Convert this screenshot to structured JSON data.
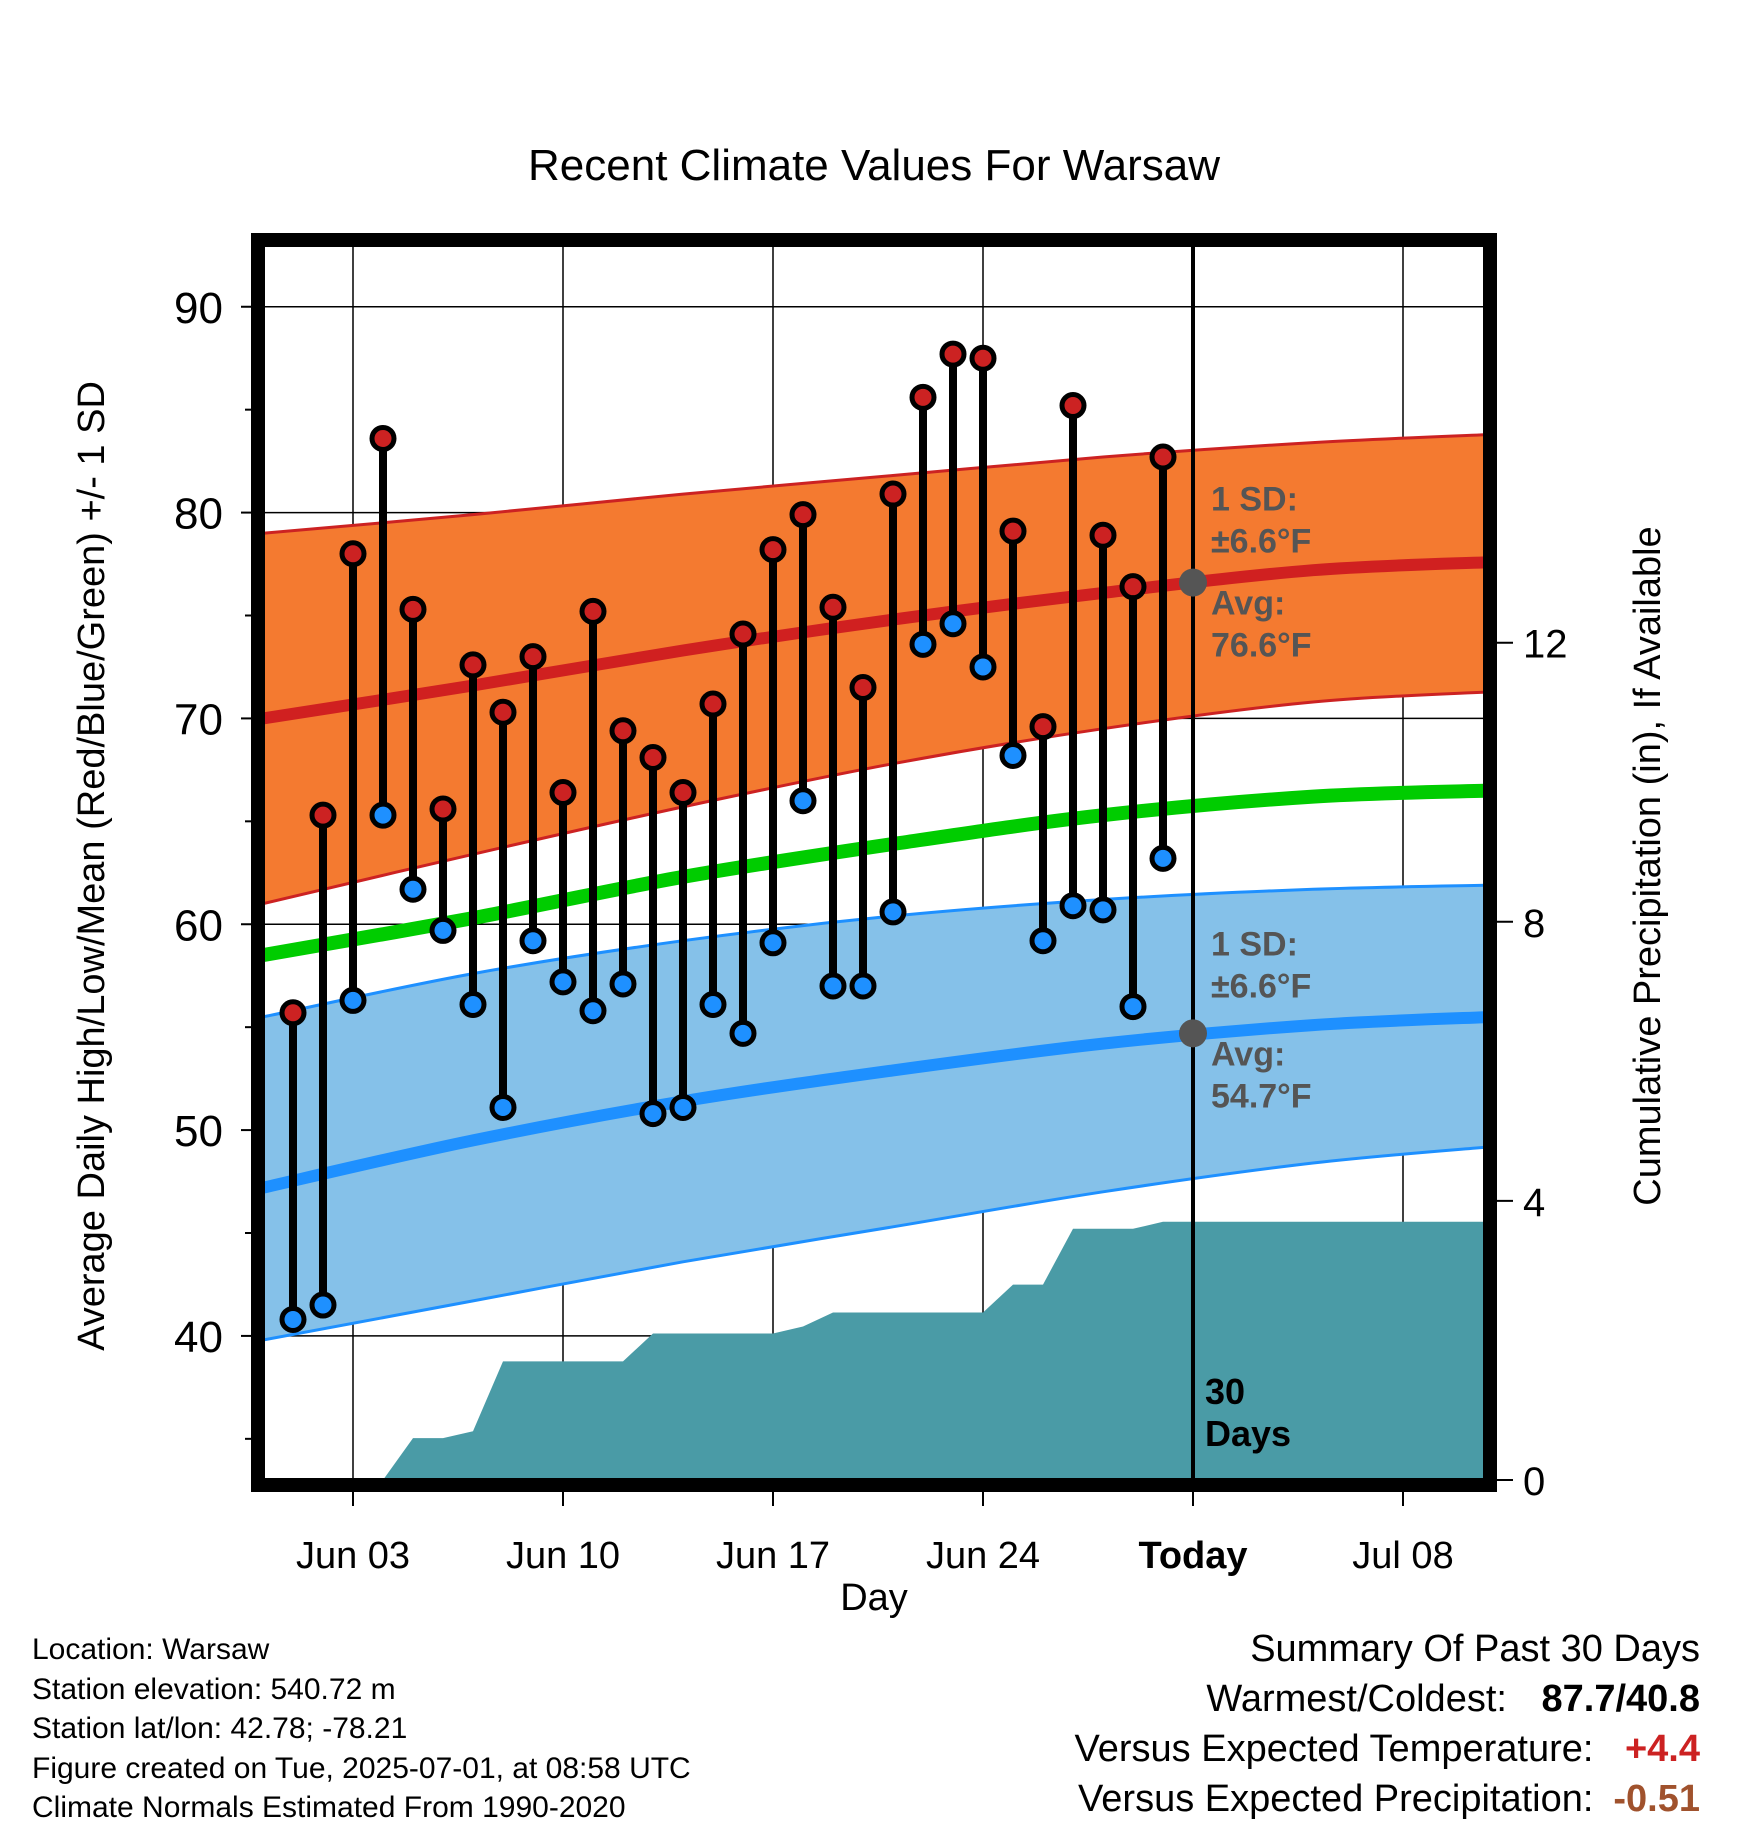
{
  "chart_data": {
    "type": "line",
    "title": "Recent Climate Values For Warsaw",
    "xlabel": "Day",
    "ylabel": "Average Daily High/Low/Mean (Red/Blue/Green) +/- 1 SD",
    "ylabel_right": "Cumulative Precipitation (in), If Available",
    "ylim": [
      33.0,
      93.0
    ],
    "y_ticks": [
      "40",
      "50",
      "60",
      "70",
      "80",
      "90"
    ],
    "ylim_right": [
      0,
      17.7
    ],
    "y_right_ticks": [
      "0",
      "4",
      "8",
      "12"
    ],
    "x_start_date": "2025-05-31",
    "x_end_date": "2025-07-11",
    "x_ticks": [
      {
        "date": "2025-06-03",
        "label": "Jun 03"
      },
      {
        "date": "2025-06-10",
        "label": "Jun 10"
      },
      {
        "date": "2025-06-17",
        "label": "Jun 17"
      },
      {
        "date": "2025-06-24",
        "label": "Jun 24"
      },
      {
        "date": "2025-07-01",
        "label": "Today"
      },
      {
        "date": "2025-07-08",
        "label": "Jul 08"
      }
    ],
    "today_date": "2025-07-01",
    "today_marker_label": "30\nDays",
    "grid": true,
    "series": [
      {
        "name": "Daily High",
        "color": "#cc2222",
        "marker": "dot",
        "x": [
          "2025-06-01",
          "2025-06-02",
          "2025-06-03",
          "2025-06-04",
          "2025-06-05",
          "2025-06-06",
          "2025-06-07",
          "2025-06-08",
          "2025-06-09",
          "2025-06-10",
          "2025-06-11",
          "2025-06-12",
          "2025-06-13",
          "2025-06-14",
          "2025-06-15",
          "2025-06-16",
          "2025-06-17",
          "2025-06-18",
          "2025-06-19",
          "2025-06-20",
          "2025-06-21",
          "2025-06-22",
          "2025-06-23",
          "2025-06-24",
          "2025-06-25",
          "2025-06-26",
          "2025-06-27",
          "2025-06-28",
          "2025-06-29",
          "2025-06-30"
        ],
        "values": [
          55.7,
          65.3,
          78.0,
          83.6,
          75.3,
          65.6,
          72.6,
          70.3,
          73.0,
          66.4,
          75.2,
          69.4,
          68.1,
          66.4,
          70.7,
          74.1,
          78.2,
          79.9,
          75.4,
          71.5,
          80.9,
          85.6,
          87.7,
          87.5,
          79.1,
          69.6,
          85.2,
          78.9,
          76.4,
          82.7
        ]
      },
      {
        "name": "Daily Low",
        "color": "#1e90ff",
        "marker": "dot",
        "x": [
          "2025-06-01",
          "2025-06-02",
          "2025-06-03",
          "2025-06-04",
          "2025-06-05",
          "2025-06-06",
          "2025-06-07",
          "2025-06-08",
          "2025-06-09",
          "2025-06-10",
          "2025-06-11",
          "2025-06-12",
          "2025-06-13",
          "2025-06-14",
          "2025-06-15",
          "2025-06-16",
          "2025-06-17",
          "2025-06-18",
          "2025-06-19",
          "2025-06-20",
          "2025-06-21",
          "2025-06-22",
          "2025-06-23",
          "2025-06-24",
          "2025-06-25",
          "2025-06-26",
          "2025-06-27",
          "2025-06-28",
          "2025-06-29",
          "2025-06-30"
        ],
        "values": [
          40.8,
          41.5,
          56.3,
          65.3,
          61.7,
          59.7,
          56.1,
          51.1,
          59.2,
          57.2,
          55.8,
          57.1,
          50.8,
          51.1,
          56.1,
          54.7,
          59.1,
          66.0,
          57.0,
          57.0,
          60.6,
          73.6,
          74.6,
          72.5,
          68.2,
          59.2,
          60.9,
          60.7,
          56.0,
          63.2
        ]
      },
      {
        "name": "Normal High",
        "color": "#d02020",
        "x": [
          "2025-05-31",
          "2025-06-07",
          "2025-06-14",
          "2025-06-21",
          "2025-06-28",
          "2025-07-05",
          "2025-07-11"
        ],
        "values": [
          70.0,
          71.6,
          73.3,
          74.8,
          76.1,
          77.2,
          77.6
        ]
      },
      {
        "name": "Normal High +1 SD",
        "color": "#cc2222",
        "x": [
          "2025-05-31",
          "2025-06-07",
          "2025-06-14",
          "2025-06-21",
          "2025-06-28",
          "2025-07-05",
          "2025-07-11"
        ],
        "values": [
          79.0,
          79.9,
          80.9,
          81.8,
          82.7,
          83.4,
          83.8
        ]
      },
      {
        "name": "Normal High -1 SD",
        "color": "#cc2222",
        "x": [
          "2025-05-31",
          "2025-06-07",
          "2025-06-14",
          "2025-06-21",
          "2025-06-28",
          "2025-07-05",
          "2025-07-11"
        ],
        "values": [
          61.0,
          63.4,
          65.7,
          67.8,
          69.5,
          70.8,
          71.3
        ]
      },
      {
        "name": "Normal Mean",
        "color": "#00cc00",
        "x": [
          "2025-05-31",
          "2025-06-07",
          "2025-06-14",
          "2025-06-21",
          "2025-06-28",
          "2025-07-05",
          "2025-07-11"
        ],
        "values": [
          58.5,
          60.3,
          62.3,
          63.9,
          65.3,
          66.2,
          66.5
        ]
      },
      {
        "name": "Normal Low",
        "color": "#1e90ff",
        "x": [
          "2025-05-31",
          "2025-06-07",
          "2025-06-14",
          "2025-06-21",
          "2025-06-28",
          "2025-07-05",
          "2025-07-11"
        ],
        "values": [
          47.2,
          49.5,
          51.4,
          52.9,
          54.2,
          55.1,
          55.5
        ]
      },
      {
        "name": "Normal Low +1 SD",
        "color": "#1e90ff",
        "x": [
          "2025-05-31",
          "2025-06-07",
          "2025-06-14",
          "2025-06-21",
          "2025-06-28",
          "2025-07-05",
          "2025-07-11"
        ],
        "values": [
          55.5,
          57.6,
          59.2,
          60.4,
          61.2,
          61.7,
          61.9
        ]
      },
      {
        "name": "Normal Low -1 SD",
        "color": "#1e90ff",
        "x": [
          "2025-05-31",
          "2025-06-07",
          "2025-06-14",
          "2025-06-21",
          "2025-06-28",
          "2025-07-05",
          "2025-07-11"
        ],
        "values": [
          39.8,
          41.7,
          43.6,
          45.3,
          47.0,
          48.4,
          49.2
        ]
      },
      {
        "name": "Cumulative Precipitation",
        "color": "#4a9ba6",
        "axis": "right",
        "x": [
          "2025-06-04",
          "2025-06-05",
          "2025-06-06",
          "2025-06-07",
          "2025-06-08",
          "2025-06-09",
          "2025-06-10",
          "2025-06-11",
          "2025-06-12",
          "2025-06-13",
          "2025-06-14",
          "2025-06-15",
          "2025-06-16",
          "2025-06-17",
          "2025-06-18",
          "2025-06-19",
          "2025-06-20",
          "2025-06-21",
          "2025-06-22",
          "2025-06-23",
          "2025-06-24",
          "2025-06-25",
          "2025-06-26",
          "2025-06-27",
          "2025-06-28",
          "2025-06-29",
          "2025-06-30",
          "2025-07-01",
          "2025-07-11"
        ],
        "values": [
          0.0,
          0.6,
          0.6,
          0.7,
          1.7,
          1.7,
          1.7,
          1.7,
          1.7,
          2.1,
          2.1,
          2.1,
          2.1,
          2.1,
          2.2,
          2.4,
          2.4,
          2.4,
          2.4,
          2.4,
          2.4,
          2.8,
          2.8,
          3.6,
          3.6,
          3.6,
          3.7,
          3.7,
          3.7
        ]
      }
    ],
    "annotations": {
      "high_sd_label": "1 SD:",
      "high_sd_value": "±6.6°F",
      "high_avg_label": "Avg:",
      "high_avg_value": "76.6°F",
      "high_avg_today": 76.6,
      "low_sd_label": "1 SD:",
      "low_sd_value": "±6.6°F",
      "low_avg_label": "Avg:",
      "low_avg_value": "54.7°F",
      "low_avg_today": 54.7
    },
    "colors": {
      "high_band": "#f47a30",
      "low_band": "#85c1e9",
      "precip": "#4a9ba6",
      "annotation_text": "#555555"
    }
  },
  "footer": {
    "location": "Location: Warsaw",
    "elevation": "Station elevation: 540.72 m",
    "latlon": "Station lat/lon: 42.78; -78.21",
    "created": "Figure created on Tue, 2025-07-01, at 08:58 UTC",
    "normals": "Climate Normals Estimated From 1990-2020"
  },
  "summary": {
    "title": "Summary Of Past 30 Days",
    "warmest_coldest_label": "Warmest/Coldest:",
    "warmest_coldest_value": "87.7/40.8",
    "temp_label": "Versus Expected Temperature:",
    "temp_value": "+4.4",
    "temp_color": "#cc2222",
    "precip_label": "Versus Expected Precipitation:",
    "precip_value": "-0.51",
    "precip_color": "#a0522d"
  }
}
